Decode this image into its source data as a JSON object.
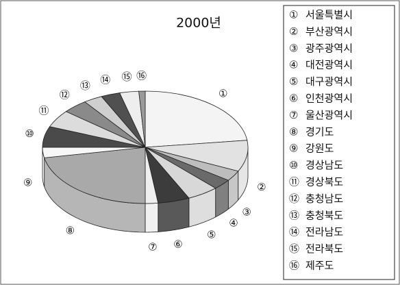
{
  "chart_data": {
    "type": "pie3d",
    "title": "2000년",
    "markers": [
      "①",
      "②",
      "③",
      "④",
      "⑤",
      "⑥",
      "⑦",
      "⑧",
      "⑨",
      "⑩",
      "⑪",
      "⑫",
      "⑬",
      "⑭",
      "⑮",
      "⑯"
    ],
    "categories": [
      "서울특별시",
      "부산광역시",
      "광주광역시",
      "대전광역시",
      "대구광역시",
      "인천광역시",
      "울산광역시",
      "경기도",
      "강원도",
      "경상남도",
      "경상북도",
      "충청남도",
      "충청북도",
      "전라남도",
      "전라북도",
      "제주도"
    ],
    "values": [
      23,
      9,
      3,
      3,
      5,
      5,
      2,
      22,
      3,
      6,
      5,
      4,
      3,
      3,
      3,
      1
    ],
    "colors": [
      "#f4f4f4",
      "#e2e2e2",
      "#bdbdbd",
      "#6a6a6a",
      "#d8d8d8",
      "#3c3c3c",
      "#efefef",
      "#a9a9a9",
      "#f7f7f7",
      "#4a4a4a",
      "#dcdcdc",
      "#8a8a8a",
      "#cfcfcf",
      "#505050",
      "#eeeeee",
      "#9a9a9a"
    ],
    "legend": "right"
  }
}
